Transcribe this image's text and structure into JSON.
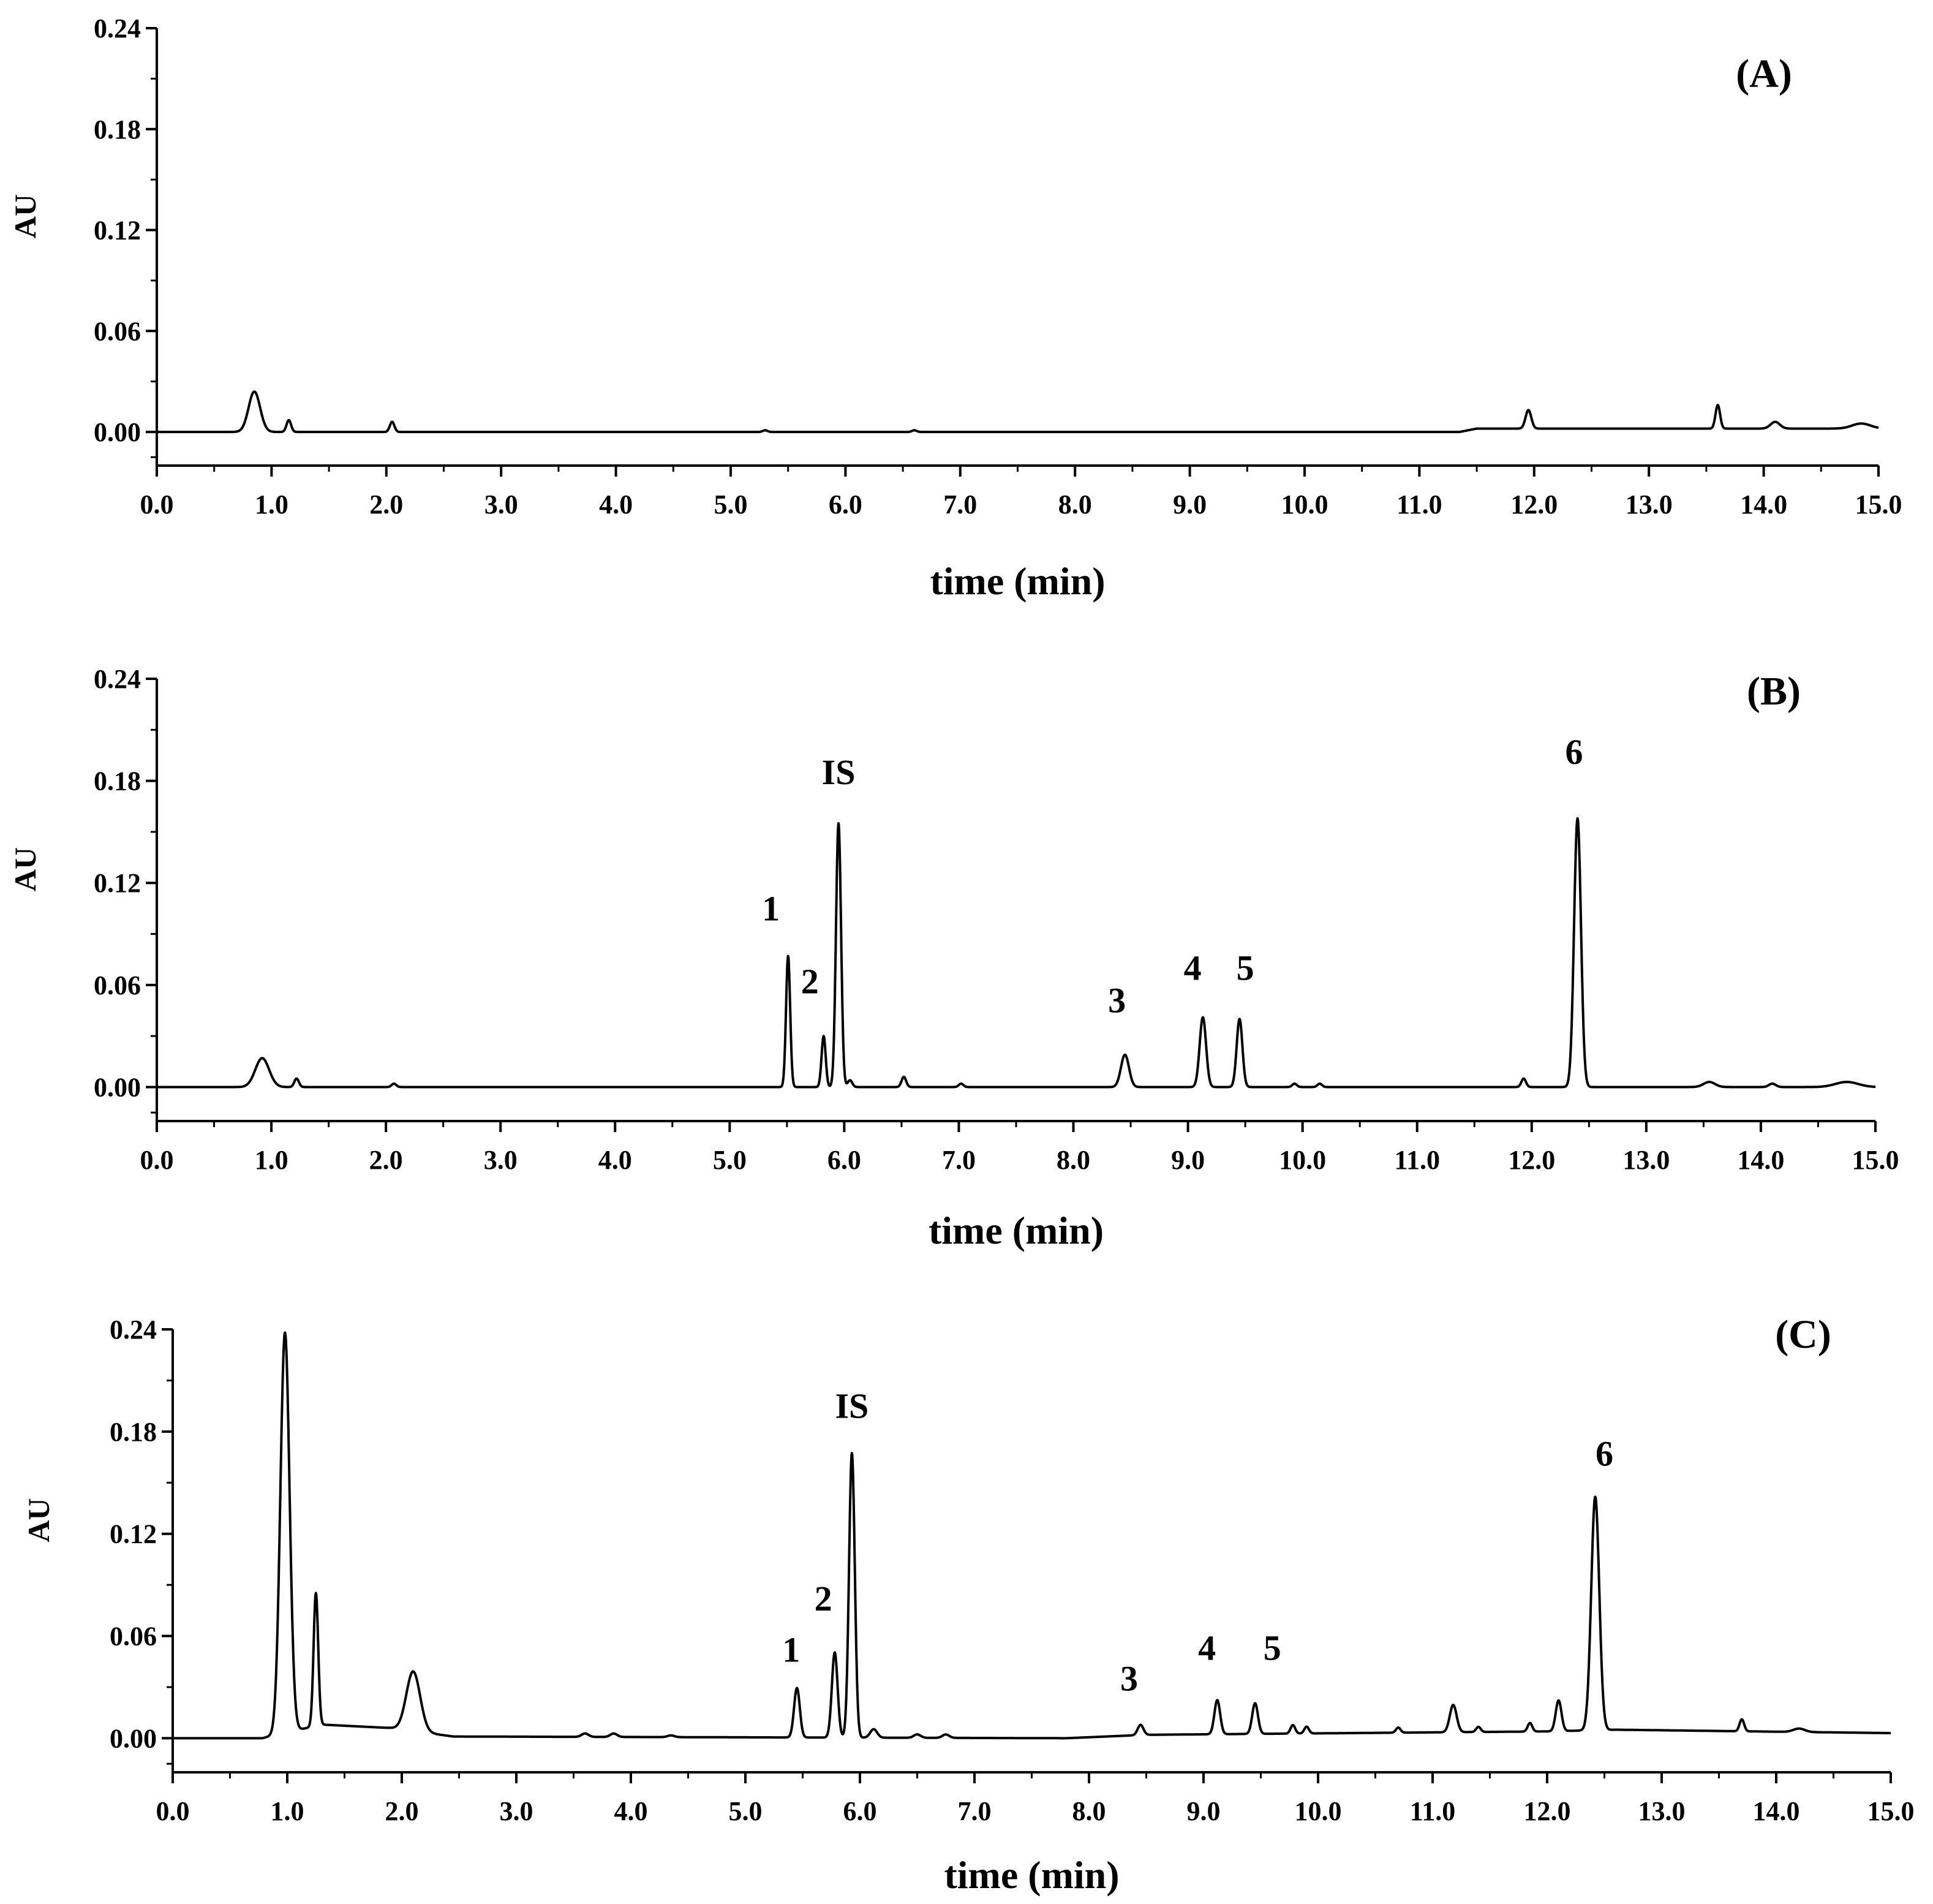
{
  "chart_data": [
    {
      "type": "line",
      "panel_label": "(A)",
      "xlabel": "time (min)",
      "ylabel": "AU",
      "xlim": [
        0,
        15
      ],
      "ylim": [
        -0.02,
        0.24
      ],
      "xticks": [
        "0.0",
        "1.0",
        "2.0",
        "3.0",
        "4.0",
        "5.0",
        "6.0",
        "7.0",
        "8.0",
        "9.0",
        "10.0",
        "11.0",
        "12.0",
        "13.0",
        "14.0",
        "15.0"
      ],
      "yticks": [
        "0.00",
        "0.06",
        "0.12",
        "0.18",
        "0.24"
      ],
      "baseline": [
        [
          0,
          0
        ],
        [
          11.35,
          0
        ],
        [
          11.5,
          0.002
        ],
        [
          15,
          0.002
        ]
      ],
      "peaks": [
        {
          "t": 0.85,
          "h": 0.024,
          "w": 0.05
        },
        {
          "t": 1.15,
          "h": 0.007,
          "w": 0.02
        },
        {
          "t": 2.05,
          "h": 0.006,
          "w": 0.02
        },
        {
          "t": 5.3,
          "h": 0.001,
          "w": 0.02
        },
        {
          "t": 6.6,
          "h": 0.001,
          "w": 0.02
        },
        {
          "t": 11.95,
          "h": 0.011,
          "w": 0.025
        },
        {
          "t": 13.6,
          "h": 0.014,
          "w": 0.02
        },
        {
          "t": 14.1,
          "h": 0.004,
          "w": 0.04
        },
        {
          "t": 14.85,
          "h": 0.003,
          "w": 0.08
        }
      ],
      "annotations": []
    },
    {
      "type": "line",
      "panel_label": "(B)",
      "xlabel": "time (min)",
      "ylabel": "AU",
      "xlim": [
        0,
        15
      ],
      "ylim": [
        -0.02,
        0.24
      ],
      "xticks": [
        "0.0",
        "1.0",
        "2.0",
        "3.0",
        "4.0",
        "5.0",
        "6.0",
        "7.0",
        "8.0",
        "9.0",
        "10.0",
        "11.0",
        "12.0",
        "13.0",
        "14.0",
        "15.0"
      ],
      "yticks": [
        "0.00",
        "0.06",
        "0.12",
        "0.18",
        "0.24"
      ],
      "baseline": [
        [
          0,
          0
        ],
        [
          15,
          0
        ]
      ],
      "peaks": [
        {
          "t": 0.92,
          "h": 0.017,
          "w": 0.06
        },
        {
          "t": 1.22,
          "h": 0.005,
          "w": 0.02
        },
        {
          "t": 2.07,
          "h": 0.002,
          "w": 0.02
        },
        {
          "t": 5.51,
          "h": 0.077,
          "w": 0.018
        },
        {
          "t": 5.82,
          "h": 0.03,
          "w": 0.018
        },
        {
          "t": 5.95,
          "h": 0.155,
          "w": 0.022
        },
        {
          "t": 6.05,
          "h": 0.004,
          "w": 0.02
        },
        {
          "t": 6.52,
          "h": 0.006,
          "w": 0.02
        },
        {
          "t": 7.02,
          "h": 0.002,
          "w": 0.02
        },
        {
          "t": 8.45,
          "h": 0.019,
          "w": 0.035
        },
        {
          "t": 9.13,
          "h": 0.041,
          "w": 0.028
        },
        {
          "t": 9.45,
          "h": 0.04,
          "w": 0.025
        },
        {
          "t": 9.93,
          "h": 0.002,
          "w": 0.02
        },
        {
          "t": 10.15,
          "h": 0.002,
          "w": 0.02
        },
        {
          "t": 11.93,
          "h": 0.005,
          "w": 0.02
        },
        {
          "t": 12.4,
          "h": 0.158,
          "w": 0.03
        },
        {
          "t": 13.55,
          "h": 0.003,
          "w": 0.05
        },
        {
          "t": 14.1,
          "h": 0.002,
          "w": 0.03
        },
        {
          "t": 14.75,
          "h": 0.003,
          "w": 0.1
        }
      ],
      "annotations": [
        {
          "text": "1",
          "t": 5.36,
          "y": 0.098
        },
        {
          "text": "2",
          "t": 5.7,
          "y": 0.055
        },
        {
          "text": "IS",
          "t": 5.95,
          "y": 0.178
        },
        {
          "text": "3",
          "t": 8.38,
          "y": 0.044
        },
        {
          "text": "4",
          "t": 9.04,
          "y": 0.063
        },
        {
          "text": "5",
          "t": 9.5,
          "y": 0.063
        },
        {
          "text": "6",
          "t": 12.37,
          "y": 0.19
        }
      ]
    },
    {
      "type": "line",
      "panel_label": "(C)",
      "xlabel": "time (min)",
      "ylabel": "AU",
      "xlim": [
        0,
        15
      ],
      "ylim": [
        -0.02,
        0.24
      ],
      "xticks": [
        "0.0",
        "1.0",
        "2.0",
        "3.0",
        "4.0",
        "5.0",
        "6.0",
        "7.0",
        "8.0",
        "9.0",
        "10.0",
        "11.0",
        "12.0",
        "13.0",
        "14.0",
        "15.0"
      ],
      "yticks": [
        "0.00",
        "0.06",
        "0.12",
        "0.18",
        "0.24"
      ],
      "baseline": [
        [
          0,
          0
        ],
        [
          0.78,
          0
        ],
        [
          1.3,
          0.008
        ],
        [
          1.9,
          0.006
        ],
        [
          2.45,
          0.001
        ],
        [
          7.8,
          0.0
        ],
        [
          8.5,
          0.002
        ],
        [
          12.0,
          0.004
        ],
        [
          12.6,
          0.005
        ],
        [
          15,
          0.003
        ]
      ],
      "peaks": [
        {
          "t": 0.98,
          "h": 0.235,
          "w": 0.04
        },
        {
          "t": 1.25,
          "h": 0.078,
          "w": 0.02
        },
        {
          "t": 2.1,
          "h": 0.035,
          "w": 0.06
        },
        {
          "t": 3.6,
          "h": 0.002,
          "w": 0.03
        },
        {
          "t": 3.85,
          "h": 0.002,
          "w": 0.03
        },
        {
          "t": 4.35,
          "h": 0.001,
          "w": 0.03
        },
        {
          "t": 5.45,
          "h": 0.029,
          "w": 0.025
        },
        {
          "t": 5.78,
          "h": 0.05,
          "w": 0.025
        },
        {
          "t": 5.93,
          "h": 0.167,
          "w": 0.025
        },
        {
          "t": 6.12,
          "h": 0.005,
          "w": 0.03
        },
        {
          "t": 6.5,
          "h": 0.002,
          "w": 0.03
        },
        {
          "t": 6.75,
          "h": 0.002,
          "w": 0.03
        },
        {
          "t": 8.45,
          "h": 0.006,
          "w": 0.025
        },
        {
          "t": 9.12,
          "h": 0.02,
          "w": 0.025
        },
        {
          "t": 9.45,
          "h": 0.018,
          "w": 0.025
        },
        {
          "t": 9.78,
          "h": 0.005,
          "w": 0.02
        },
        {
          "t": 9.9,
          "h": 0.004,
          "w": 0.02
        },
        {
          "t": 10.7,
          "h": 0.003,
          "w": 0.02
        },
        {
          "t": 11.18,
          "h": 0.016,
          "w": 0.03
        },
        {
          "t": 11.4,
          "h": 0.003,
          "w": 0.02
        },
        {
          "t": 11.85,
          "h": 0.005,
          "w": 0.02
        },
        {
          "t": 12.1,
          "h": 0.018,
          "w": 0.025
        },
        {
          "t": 12.42,
          "h": 0.137,
          "w": 0.035
        },
        {
          "t": 13.7,
          "h": 0.007,
          "w": 0.02
        },
        {
          "t": 14.2,
          "h": 0.002,
          "w": 0.05
        }
      ],
      "annotations": [
        {
          "text": "1",
          "t": 5.4,
          "y": 0.045
        },
        {
          "text": "2",
          "t": 5.68,
          "y": 0.075
        },
        {
          "text": "IS",
          "t": 5.93,
          "y": 0.188
        },
        {
          "text": "3",
          "t": 8.35,
          "y": 0.028
        },
        {
          "text": "4",
          "t": 9.03,
          "y": 0.046
        },
        {
          "text": "5",
          "t": 9.6,
          "y": 0.046
        },
        {
          "text": "6",
          "t": 12.5,
          "y": 0.16
        }
      ]
    }
  ]
}
